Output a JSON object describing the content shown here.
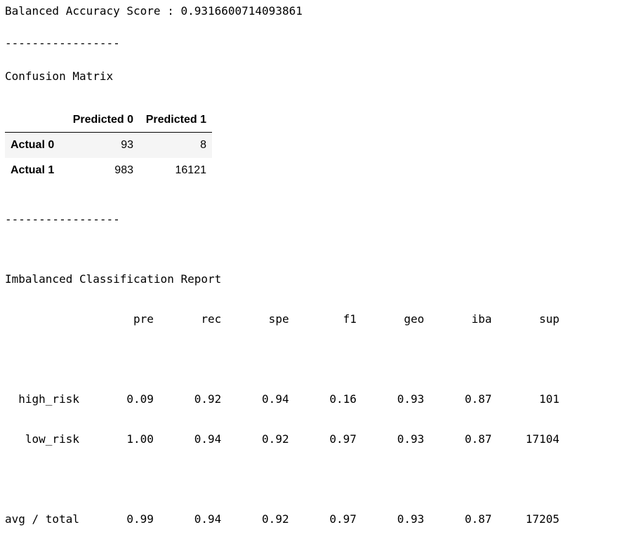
{
  "balanced_accuracy_line": "Balanced Accuracy Score : 0.9316600714093861",
  "separator": "-----------------",
  "confusion_matrix": {
    "title": "Confusion Matrix",
    "columns": [
      "Predicted 0",
      "Predicted 1"
    ],
    "rows": [
      {
        "label": "Actual 0",
        "values": [
          "93",
          "8"
        ]
      },
      {
        "label": "Actual 1",
        "values": [
          "983",
          "16121"
        ]
      }
    ]
  },
  "report": {
    "title": "Imbalanced Classification Report",
    "header_line": "                   pre       rec       spe        f1       geo       iba       sup",
    "blank_line": "",
    "row_high_risk": "  high_risk       0.09      0.92      0.94      0.16      0.93      0.87       101",
    "row_low_risk": "   low_risk       1.00      0.94      0.92      0.97      0.93      0.87     17104",
    "row_avg_total": "avg / total       0.99      0.94      0.92      0.97      0.93      0.87     17205"
  }
}
